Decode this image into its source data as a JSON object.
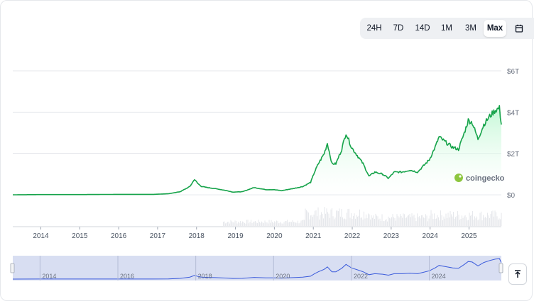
{
  "toolbar": {
    "ranges": [
      "24H",
      "7D",
      "14D",
      "1M",
      "3M",
      "Max"
    ],
    "active": "Max",
    "calendar_icon": "calendar-icon",
    "download_icon": "download-icon"
  },
  "watermark": "coingecko",
  "scroll_top_icon": "arrow-to-top-icon",
  "colors": {
    "line": "#16a34a",
    "area": "#dcfce7",
    "navigator_line": "#3b5bdb",
    "navigator_bg": "#d8def2"
  },
  "chart_data": {
    "type": "area",
    "y_ticks": [
      "$0",
      "$2T",
      "$4T",
      "$6T"
    ],
    "ylim": [
      0,
      6
    ],
    "y_unit": "T USD",
    "x_ticks": [
      "2014",
      "2015",
      "2016",
      "2017",
      "2018",
      "2019",
      "2020",
      "2021",
      "2022",
      "2023",
      "2024",
      "2025"
    ],
    "x_range": [
      2013.3,
      2025.85
    ],
    "grid": true,
    "series": [
      {
        "x": [
          2013.3,
          2014,
          2015,
          2016,
          2016.9,
          2017.3,
          2017.6,
          2017.85,
          2017.97,
          2018.05,
          2018.15,
          2018.3,
          2018.5,
          2018.8,
          2018.95,
          2019.2,
          2019.5,
          2019.8,
          2020.0,
          2020.2,
          2020.5,
          2020.75,
          2020.95,
          2021.05,
          2021.15,
          2021.3,
          2021.38,
          2021.5,
          2021.6,
          2021.75,
          2021.86,
          2022.0,
          2022.15,
          2022.3,
          2022.45,
          2022.6,
          2022.8,
          2022.95,
          2023.1,
          2023.3,
          2023.5,
          2023.7,
          2023.85,
          2024.0,
          2024.15,
          2024.25,
          2024.45,
          2024.6,
          2024.75,
          2024.9,
          2025.0,
          2025.1,
          2025.25,
          2025.4,
          2025.55,
          2025.7,
          2025.8,
          2025.85
        ],
        "y": [
          0.0,
          0.01,
          0.01,
          0.02,
          0.02,
          0.05,
          0.15,
          0.4,
          0.75,
          0.55,
          0.4,
          0.35,
          0.3,
          0.2,
          0.13,
          0.15,
          0.35,
          0.25,
          0.25,
          0.2,
          0.3,
          0.4,
          0.6,
          1.1,
          1.5,
          2.0,
          2.5,
          1.5,
          1.5,
          2.2,
          3.0,
          2.3,
          1.9,
          1.5,
          0.9,
          1.1,
          1.0,
          0.8,
          1.1,
          1.1,
          1.2,
          1.1,
          1.4,
          1.7,
          2.3,
          2.8,
          2.5,
          2.3,
          2.2,
          3.0,
          3.6,
          3.5,
          2.7,
          3.4,
          3.8,
          4.1,
          4.2,
          3.4
        ]
      }
    ],
    "navigator_ticks": [
      "2014",
      "2016",
      "2018",
      "2020",
      "2022",
      "2024"
    ]
  }
}
